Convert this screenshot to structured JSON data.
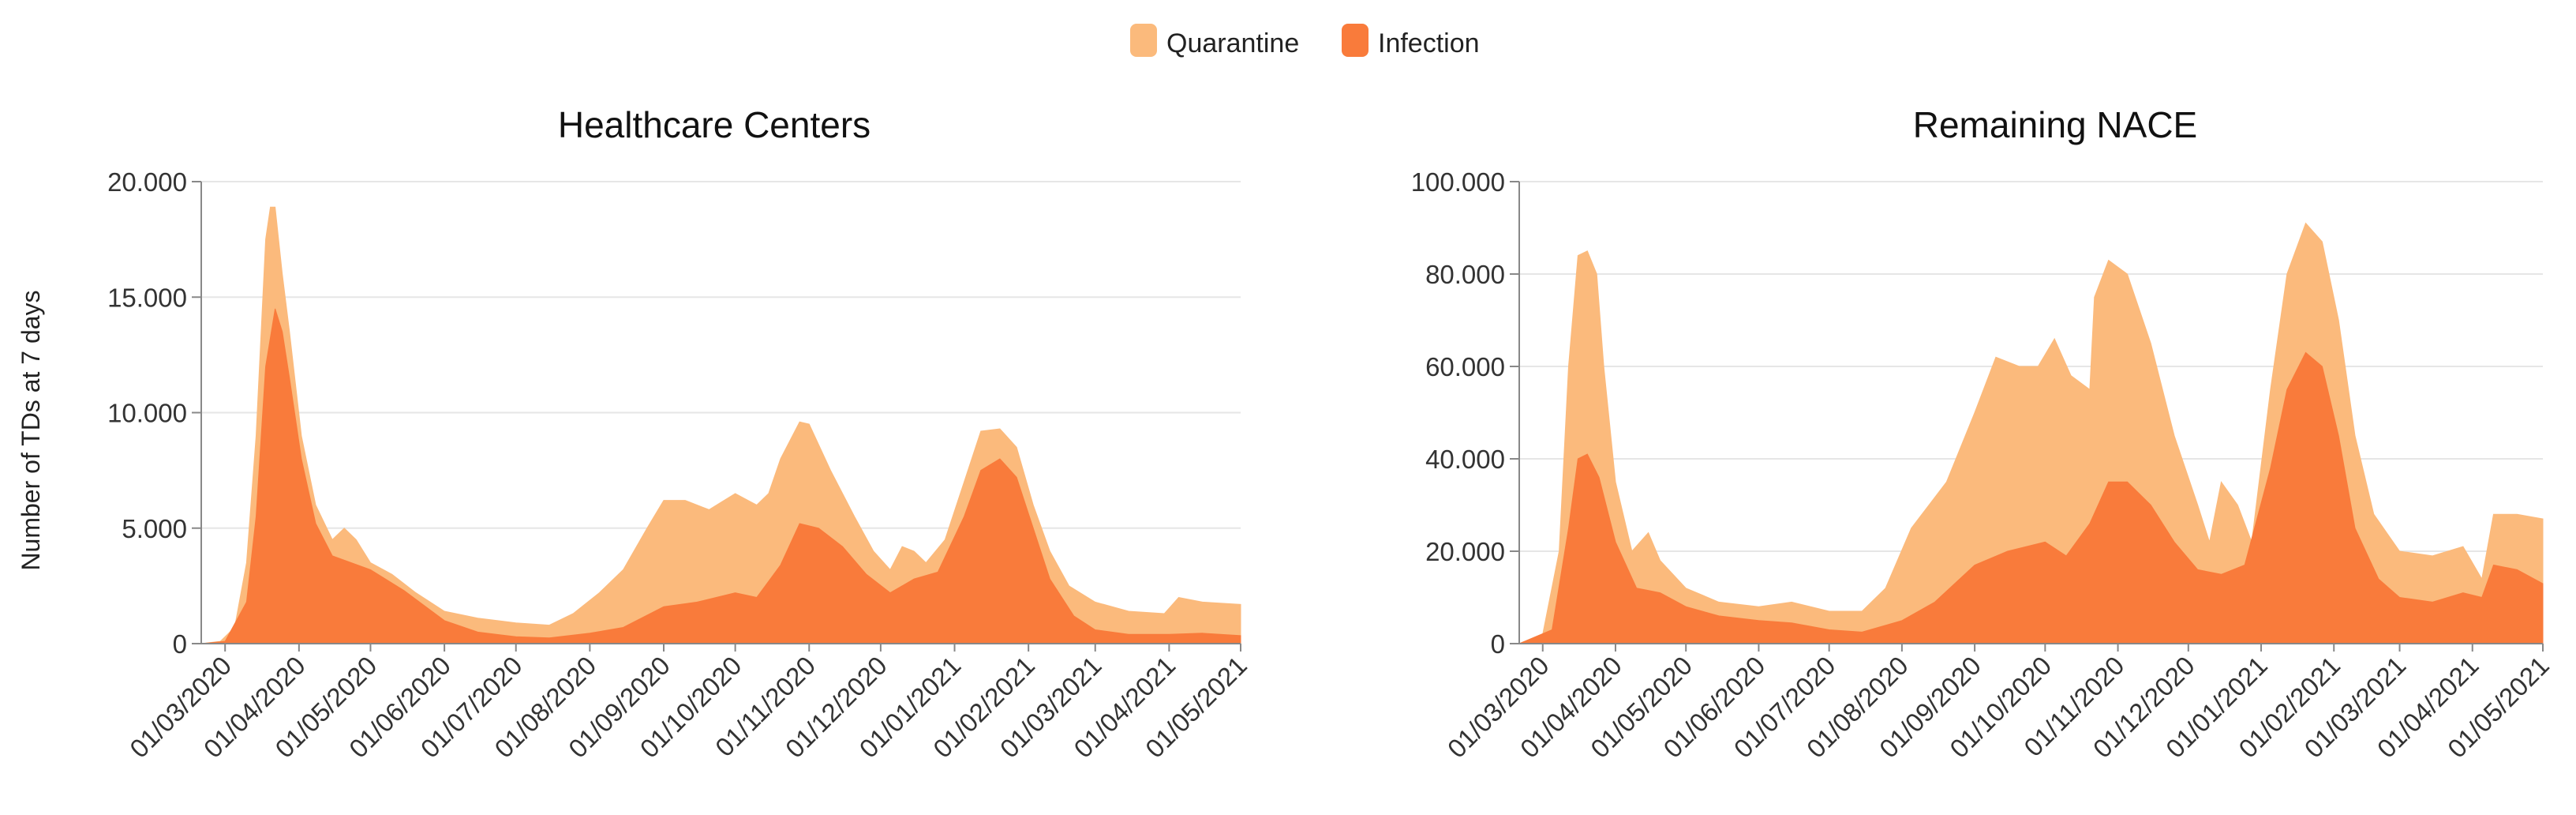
{
  "legend": {
    "items": [
      {
        "label": "Quarantine",
        "color": "#FBBA7C"
      },
      {
        "label": "Infection",
        "color": "#F97B3B"
      }
    ]
  },
  "ylabel": "Number of TDs at 7 days",
  "chart_data": [
    {
      "type": "area",
      "title": "Healthcare Centers",
      "ylabel": "Number of TDs at 7 days",
      "ylim": [
        0,
        20000
      ],
      "yticks": [
        0,
        5000,
        10000,
        15000,
        20000
      ],
      "ytick_labels": [
        "0",
        "5.000",
        "10.000",
        "15.000",
        "20.000"
      ],
      "xlim": [
        "2020-02-20",
        "2021-05-01"
      ],
      "xtick_labels": [
        "01/03/2020",
        "01/04/2020",
        "01/05/2020",
        "01/06/2020",
        "01/07/2020",
        "01/08/2020",
        "01/09/2020",
        "01/10/2020",
        "01/11/2020",
        "01/12/2020",
        "01/01/2021",
        "01/02/2021",
        "01/03/2021",
        "01/04/2021",
        "01/05/2021"
      ],
      "xtick_dates": [
        "2020-03-01",
        "2020-04-01",
        "2020-05-01",
        "2020-06-01",
        "2020-07-01",
        "2020-08-01",
        "2020-09-01",
        "2020-10-01",
        "2020-11-01",
        "2020-12-01",
        "2021-01-01",
        "2021-02-01",
        "2021-03-01",
        "2021-04-01",
        "2021-05-01"
      ],
      "grid": true,
      "series": [
        {
          "name": "Quarantine",
          "color": "#FBBA7C",
          "points": [
            [
              "2020-02-20",
              0
            ],
            [
              "2020-02-28",
              100
            ],
            [
              "2020-03-05",
              700
            ],
            [
              "2020-03-10",
              3500
            ],
            [
              "2020-03-14",
              9000
            ],
            [
              "2020-03-18",
              17500
            ],
            [
              "2020-03-20",
              18900
            ],
            [
              "2020-03-22",
              18900
            ],
            [
              "2020-03-25",
              16000
            ],
            [
              "2020-03-28",
              13500
            ],
            [
              "2020-04-02",
              9000
            ],
            [
              "2020-04-08",
              6000
            ],
            [
              "2020-04-15",
              4500
            ],
            [
              "2020-04-20",
              5000
            ],
            [
              "2020-04-25",
              4500
            ],
            [
              "2020-05-01",
              3500
            ],
            [
              "2020-05-10",
              3000
            ],
            [
              "2020-05-20",
              2200
            ],
            [
              "2020-06-01",
              1400
            ],
            [
              "2020-06-15",
              1100
            ],
            [
              "2020-07-01",
              900
            ],
            [
              "2020-07-15",
              800
            ],
            [
              "2020-07-25",
              1300
            ],
            [
              "2020-08-05",
              2200
            ],
            [
              "2020-08-15",
              3200
            ],
            [
              "2020-08-25",
              5000
            ],
            [
              "2020-09-01",
              6200
            ],
            [
              "2020-09-10",
              6200
            ],
            [
              "2020-09-20",
              5800
            ],
            [
              "2020-10-01",
              6500
            ],
            [
              "2020-10-10",
              6000
            ],
            [
              "2020-10-15",
              6500
            ],
            [
              "2020-10-20",
              8000
            ],
            [
              "2020-10-28",
              9600
            ],
            [
              "2020-11-01",
              9500
            ],
            [
              "2020-11-10",
              7500
            ],
            [
              "2020-11-20",
              5500
            ],
            [
              "2020-11-28",
              4000
            ],
            [
              "2020-12-05",
              3200
            ],
            [
              "2020-12-10",
              4200
            ],
            [
              "2020-12-15",
              4000
            ],
            [
              "2020-12-20",
              3500
            ],
            [
              "2020-12-28",
              4500
            ],
            [
              "2021-01-05",
              7000
            ],
            [
              "2021-01-12",
              9200
            ],
            [
              "2021-01-20",
              9300
            ],
            [
              "2021-01-27",
              8500
            ],
            [
              "2021-02-03",
              6000
            ],
            [
              "2021-02-10",
              4000
            ],
            [
              "2021-02-18",
              2500
            ],
            [
              "2021-03-01",
              1800
            ],
            [
              "2021-03-15",
              1400
            ],
            [
              "2021-03-30",
              1300
            ],
            [
              "2021-04-05",
              2000
            ],
            [
              "2021-04-15",
              1800
            ],
            [
              "2021-05-01",
              1700
            ]
          ]
        },
        {
          "name": "Infection",
          "color": "#F97B3B",
          "points": [
            [
              "2020-02-20",
              0
            ],
            [
              "2020-03-01",
              100
            ],
            [
              "2020-03-10",
              1800
            ],
            [
              "2020-03-14",
              5500
            ],
            [
              "2020-03-18",
              12000
            ],
            [
              "2020-03-22",
              14500
            ],
            [
              "2020-03-25",
              13500
            ],
            [
              "2020-03-28",
              11500
            ],
            [
              "2020-04-02",
              8000
            ],
            [
              "2020-04-08",
              5200
            ],
            [
              "2020-04-15",
              3800
            ],
            [
              "2020-05-01",
              3200
            ],
            [
              "2020-05-15",
              2300
            ],
            [
              "2020-06-01",
              1000
            ],
            [
              "2020-06-15",
              500
            ],
            [
              "2020-07-01",
              300
            ],
            [
              "2020-07-15",
              250
            ],
            [
              "2020-08-01",
              450
            ],
            [
              "2020-08-15",
              700
            ],
            [
              "2020-09-01",
              1600
            ],
            [
              "2020-09-15",
              1800
            ],
            [
              "2020-10-01",
              2200
            ],
            [
              "2020-10-10",
              2000
            ],
            [
              "2020-10-20",
              3400
            ],
            [
              "2020-10-28",
              5200
            ],
            [
              "2020-11-05",
              5000
            ],
            [
              "2020-11-15",
              4200
            ],
            [
              "2020-11-25",
              3000
            ],
            [
              "2020-12-05",
              2200
            ],
            [
              "2020-12-15",
              2800
            ],
            [
              "2020-12-25",
              3100
            ],
            [
              "2021-01-05",
              5500
            ],
            [
              "2021-01-12",
              7500
            ],
            [
              "2021-01-20",
              8000
            ],
            [
              "2021-01-27",
              7200
            ],
            [
              "2021-02-03",
              5000
            ],
            [
              "2021-02-10",
              2800
            ],
            [
              "2021-02-20",
              1200
            ],
            [
              "2021-03-01",
              600
            ],
            [
              "2021-03-15",
              400
            ],
            [
              "2021-04-01",
              400
            ],
            [
              "2021-04-15",
              450
            ],
            [
              "2021-05-01",
              350
            ]
          ]
        }
      ]
    },
    {
      "type": "area",
      "title": "Remaining NACE",
      "ylim": [
        0,
        100000
      ],
      "yticks": [
        0,
        20000,
        40000,
        60000,
        80000,
        100000
      ],
      "ytick_labels": [
        "0",
        "20.000",
        "40.000",
        "60.000",
        "80.000",
        "100.000"
      ],
      "xlim": [
        "2020-02-20",
        "2021-05-01"
      ],
      "xtick_labels": [
        "01/03/2020",
        "01/04/2020",
        "01/05/2020",
        "01/06/2020",
        "01/07/2020",
        "01/08/2020",
        "01/09/2020",
        "01/10/2020",
        "01/11/2020",
        "01/12/2020",
        "01/01/2021",
        "01/02/2021",
        "01/03/2021",
        "01/04/2021",
        "01/05/2021"
      ],
      "xtick_dates": [
        "2020-03-01",
        "2020-04-01",
        "2020-05-01",
        "2020-06-01",
        "2020-07-01",
        "2020-08-01",
        "2020-09-01",
        "2020-10-01",
        "2020-11-01",
        "2020-12-01",
        "2021-01-01",
        "2021-02-01",
        "2021-03-01",
        "2021-04-01",
        "2021-05-01"
      ],
      "grid": true,
      "series": [
        {
          "name": "Quarantine",
          "color": "#FBBA7C",
          "points": [
            [
              "2020-02-20",
              0
            ],
            [
              "2020-03-01",
              2000
            ],
            [
              "2020-03-08",
              20000
            ],
            [
              "2020-03-12",
              60000
            ],
            [
              "2020-03-16",
              84000
            ],
            [
              "2020-03-20",
              85000
            ],
            [
              "2020-03-24",
              80000
            ],
            [
              "2020-03-27",
              60000
            ],
            [
              "2020-04-01",
              35000
            ],
            [
              "2020-04-08",
              20000
            ],
            [
              "2020-04-15",
              24000
            ],
            [
              "2020-04-20",
              18000
            ],
            [
              "2020-05-01",
              12000
            ],
            [
              "2020-05-15",
              9000
            ],
            [
              "2020-06-01",
              8000
            ],
            [
              "2020-06-15",
              9000
            ],
            [
              "2020-07-01",
              7000
            ],
            [
              "2020-07-15",
              7000
            ],
            [
              "2020-07-25",
              12000
            ],
            [
              "2020-08-05",
              25000
            ],
            [
              "2020-08-20",
              35000
            ],
            [
              "2020-09-01",
              50000
            ],
            [
              "2020-09-10",
              62000
            ],
            [
              "2020-09-20",
              60000
            ],
            [
              "2020-09-28",
              60000
            ],
            [
              "2020-10-05",
              66000
            ],
            [
              "2020-10-12",
              58000
            ],
            [
              "2020-10-20",
              55000
            ],
            [
              "2020-10-22",
              75000
            ],
            [
              "2020-10-28",
              83000
            ],
            [
              "2020-11-05",
              80000
            ],
            [
              "2020-11-15",
              65000
            ],
            [
              "2020-11-25",
              45000
            ],
            [
              "2020-12-05",
              30000
            ],
            [
              "2020-12-10",
              22000
            ],
            [
              "2020-12-15",
              35000
            ],
            [
              "2020-12-22",
              30000
            ],
            [
              "2020-12-28",
              22000
            ],
            [
              "2021-01-05",
              55000
            ],
            [
              "2021-01-12",
              80000
            ],
            [
              "2021-01-20",
              91000
            ],
            [
              "2021-01-27",
              87000
            ],
            [
              "2021-02-03",
              70000
            ],
            [
              "2021-02-10",
              45000
            ],
            [
              "2021-02-18",
              28000
            ],
            [
              "2021-03-01",
              20000
            ],
            [
              "2021-03-15",
              19000
            ],
            [
              "2021-03-28",
              21000
            ],
            [
              "2021-04-05",
              14000
            ],
            [
              "2021-04-10",
              28000
            ],
            [
              "2021-04-20",
              28000
            ],
            [
              "2021-05-01",
              27000
            ]
          ]
        },
        {
          "name": "Infection",
          "color": "#F97B3B",
          "points": [
            [
              "2020-02-20",
              0
            ],
            [
              "2020-03-05",
              3000
            ],
            [
              "2020-03-12",
              25000
            ],
            [
              "2020-03-16",
              40000
            ],
            [
              "2020-03-20",
              41000
            ],
            [
              "2020-03-25",
              36000
            ],
            [
              "2020-04-01",
              22000
            ],
            [
              "2020-04-10",
              12000
            ],
            [
              "2020-04-20",
              11000
            ],
            [
              "2020-05-01",
              8000
            ],
            [
              "2020-05-15",
              6000
            ],
            [
              "2020-06-01",
              5000
            ],
            [
              "2020-06-15",
              4500
            ],
            [
              "2020-07-01",
              3000
            ],
            [
              "2020-07-15",
              2500
            ],
            [
              "2020-08-01",
              5000
            ],
            [
              "2020-08-15",
              9000
            ],
            [
              "2020-09-01",
              17000
            ],
            [
              "2020-09-15",
              20000
            ],
            [
              "2020-10-01",
              22000
            ],
            [
              "2020-10-10",
              19000
            ],
            [
              "2020-10-20",
              26000
            ],
            [
              "2020-10-28",
              35000
            ],
            [
              "2020-11-05",
              35000
            ],
            [
              "2020-11-15",
              30000
            ],
            [
              "2020-11-25",
              22000
            ],
            [
              "2020-12-05",
              16000
            ],
            [
              "2020-12-15",
              15000
            ],
            [
              "2020-12-25",
              17000
            ],
            [
              "2021-01-05",
              38000
            ],
            [
              "2021-01-12",
              55000
            ],
            [
              "2021-01-20",
              63000
            ],
            [
              "2021-01-27",
              60000
            ],
            [
              "2021-02-03",
              45000
            ],
            [
              "2021-02-10",
              25000
            ],
            [
              "2021-02-20",
              14000
            ],
            [
              "2021-03-01",
              10000
            ],
            [
              "2021-03-15",
              9000
            ],
            [
              "2021-03-28",
              11000
            ],
            [
              "2021-04-05",
              10000
            ],
            [
              "2021-04-10",
              17000
            ],
            [
              "2021-04-20",
              16000
            ],
            [
              "2021-05-01",
              13000
            ]
          ]
        }
      ]
    }
  ]
}
